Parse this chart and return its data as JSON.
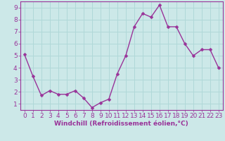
{
  "x": [
    0,
    1,
    2,
    3,
    4,
    5,
    6,
    7,
    8,
    9,
    10,
    11,
    12,
    13,
    14,
    15,
    16,
    17,
    18,
    19,
    20,
    21,
    22,
    23
  ],
  "y": [
    5.1,
    3.3,
    1.7,
    2.1,
    1.8,
    1.8,
    2.1,
    1.5,
    0.7,
    1.1,
    1.4,
    3.5,
    5.0,
    7.4,
    8.5,
    8.2,
    9.2,
    7.4,
    7.4,
    6.0,
    5.0,
    5.5,
    5.5,
    4.0
  ],
  "line_color": "#993399",
  "marker_color": "#993399",
  "bg_color": "#cce8e8",
  "grid_color": "#b0d8d8",
  "xlabel": "Windchill (Refroidissement éolien,°C)",
  "ylim": [
    0.5,
    9.5
  ],
  "xlim": [
    -0.5,
    23.5
  ],
  "yticks": [
    1,
    2,
    3,
    4,
    5,
    6,
    7,
    8,
    9
  ],
  "xticks": [
    0,
    1,
    2,
    3,
    4,
    5,
    6,
    7,
    8,
    9,
    10,
    11,
    12,
    13,
    14,
    15,
    16,
    17,
    18,
    19,
    20,
    21,
    22,
    23
  ],
  "xlabel_color": "#993399",
  "xlabel_fontsize": 6.5,
  "tick_fontsize": 6.5,
  "tick_color": "#993399",
  "axis_color": "#993399",
  "line_width": 1.0,
  "marker_size": 2.5
}
